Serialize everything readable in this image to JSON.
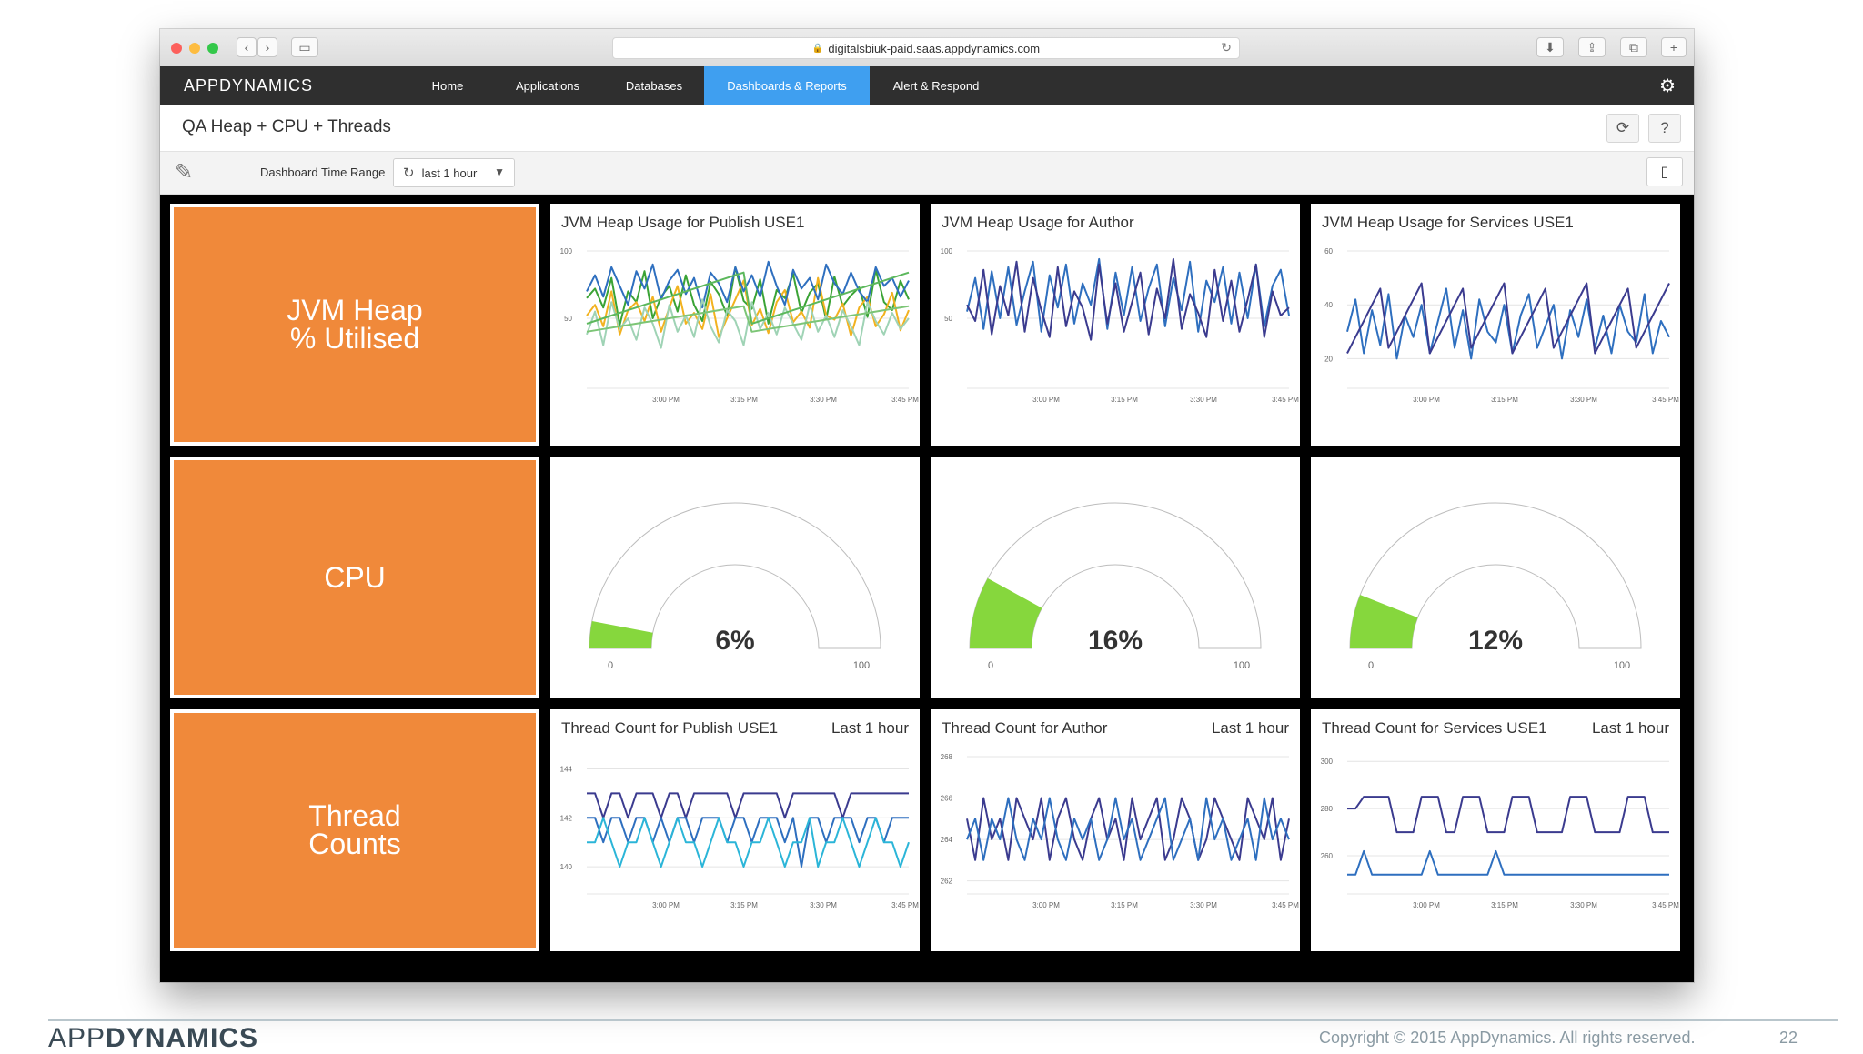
{
  "browser": {
    "url": "digitalsbiuk-paid.saas.appdynamics.com",
    "back_glyph": "‹",
    "forward_glyph": "›",
    "sidebar_glyph": "▭",
    "reload_glyph": "↻",
    "download_glyph": "⬇",
    "share_glyph": "⇪",
    "tabs_glyph": "⧉",
    "newtab_glyph": "+",
    "lock_glyph": "🔒"
  },
  "nav": {
    "logo": "APPDYNAMICS",
    "items": [
      "Home",
      "Applications",
      "Databases",
      "Dashboards & Reports",
      "Alert & Respond"
    ],
    "active_index": 3,
    "gear_glyph": "⚙",
    "active_color": "#3f9ff0"
  },
  "header": {
    "title": "QA Heap + CPU + Threads",
    "refresh_glyph": "⟳",
    "help_glyph": "?"
  },
  "toolbar": {
    "edit_glyph": "✎",
    "time_range_label": "Dashboard Time Range",
    "time_range_value": "last 1 hour",
    "cycle_glyph": "↻",
    "caret_glyph": "▼",
    "mobile_glyph": "▯"
  },
  "tiles": {
    "heap": "JVM Heap\n% Utilised",
    "cpu": "CPU",
    "threads": "Thread\nCounts",
    "color": "#f0893a"
  },
  "widgets": {
    "heap_publish": {
      "title": "JVM Heap Usage for Publish USE1",
      "subtitle": "",
      "chart_data": {
        "type": "line",
        "y_ticks": [
          "100",
          "50"
        ],
        "ylim": [
          0,
          100
        ],
        "x_ticks": [
          "3:00 PM",
          "3:15 PM",
          "3:30 PM",
          "3:45 PM"
        ],
        "series": [
          {
            "color": "#3aa335",
            "values": [
              65,
              72,
              58,
              80,
              45,
              70,
              62,
              85,
              50,
              66,
              74,
              55,
              82,
              60,
              48,
              77,
              68,
              52,
              88,
              63,
              57,
              79,
              46,
              71,
              65,
              83,
              54,
              69,
              76,
              49,
              81,
              59,
              67,
              73,
              51,
              86,
              62,
              56,
              78,
              64
            ]
          },
          {
            "color": "#f2b21f",
            "values": [
              52,
              60,
              44,
              70,
              38,
              56,
              62,
              48,
              66,
              40,
              58,
              74,
              46,
              54,
              42,
              68,
              36,
              50,
              64,
              78,
              45,
              57,
              39,
              62,
              71,
              47,
              55,
              43,
              80,
              52,
              49,
              61,
              37,
              58,
              66,
              44,
              53,
              69,
              41,
              56
            ]
          },
          {
            "color": "#2e6fbf",
            "values": [
              70,
              82,
              66,
              88,
              74,
              60,
              85,
              72,
              90,
              64,
              78,
              86,
              68,
              80,
              58,
              84,
              76,
              62,
              88,
              70,
              82,
              66,
              92,
              74,
              60,
              86,
              72,
              80,
              64,
              90,
              76,
              68,
              84,
              70,
              62,
              88,
              74,
              80,
              66,
              78
            ]
          },
          {
            "color": "#9fd3b5",
            "values": [
              38,
              55,
              30,
              62,
              42,
              50,
              34,
              58,
              46,
              28,
              60,
              40,
              52,
              36,
              64,
              44,
              32,
              56,
              48,
              30,
              62,
              42,
              54,
              38,
              58,
              46,
              34,
              60,
              40,
              52,
              36,
              56,
              44,
              30,
              62,
              48,
              38,
              54,
              42,
              50
            ]
          },
          {
            "color": "#5cb85c",
            "values": [
              46,
              48,
              50,
              52,
              54,
              56,
              58,
              60,
              62,
              64,
              66,
              68,
              70,
              72,
              74,
              76,
              78,
              80,
              82,
              84,
              46,
              48,
              50,
              52,
              54,
              56,
              58,
              60,
              62,
              64,
              66,
              68,
              70,
              72,
              74,
              76,
              78,
              80,
              82,
              84
            ]
          },
          {
            "color": "#7cc576",
            "values": [
              40,
              41,
              42,
              43,
              44,
              45,
              46,
              47,
              48,
              49,
              50,
              51,
              52,
              53,
              54,
              55,
              56,
              57,
              58,
              59,
              40,
              41,
              42,
              43,
              44,
              45,
              46,
              47,
              48,
              49,
              50,
              51,
              52,
              53,
              54,
              55,
              56,
              57,
              58,
              59
            ]
          }
        ]
      }
    },
    "heap_author": {
      "title": "JVM Heap Usage for Author",
      "subtitle": "",
      "chart_data": {
        "type": "line",
        "y_ticks": [
          "100",
          "50"
        ],
        "ylim": [
          0,
          100
        ],
        "x_ticks": [
          "3:00 PM",
          "3:15 PM",
          "3:30 PM",
          "3:45 PM"
        ],
        "series": [
          {
            "color": "#2e6fbf",
            "values": [
              55,
              80,
              42,
              85,
              50,
              88,
              45,
              70,
              92,
              40,
              82,
              58,
              90,
              46,
              76,
              60,
              94,
              42,
              84,
              52,
              88,
              48,
              72,
              90,
              44,
              80,
              56,
              92,
              40,
              78,
              62,
              88,
              46,
              84,
              50,
              90,
              44,
              74,
              86,
              52
            ]
          },
          {
            "color": "#3b3b8f",
            "values": [
              60,
              48,
              86,
              38,
              74,
              52,
              92,
              40,
              80,
              56,
              36,
              88,
              44,
              70,
              58,
              34,
              90,
              46,
              76,
              40,
              62,
              84,
              38,
              72,
              50,
              94,
              42,
              68,
              54,
              36,
              86,
              48,
              78,
              40,
              64,
              90,
              36,
              70,
              52,
              58
            ]
          }
        ]
      }
    },
    "heap_services": {
      "title": "JVM Heap Usage for Services USE1",
      "subtitle": "",
      "chart_data": {
        "type": "line",
        "y_ticks": [
          "60",
          "40",
          "20"
        ],
        "ylim": [
          10,
          60
        ],
        "x_ticks": [
          "3:00 PM",
          "3:15 PM",
          "3:30 PM",
          "3:45 PM"
        ],
        "series": [
          {
            "color": "#2e6fbf",
            "values": [
              30,
              42,
              22,
              38,
              25,
              44,
              20,
              36,
              28,
              40,
              22,
              34,
              46,
              24,
              38,
              20,
              42,
              30,
              26,
              40,
              22,
              36,
              44,
              24,
              32,
              40,
              20,
              38,
              28,
              42,
              24,
              36,
              22,
              40,
              30,
              26,
              44,
              22,
              34,
              28
            ]
          },
          {
            "color": "#3b3b8f",
            "values": [
              22,
              28,
              34,
              40,
              46,
              24,
              30,
              36,
              42,
              48,
              22,
              28,
              34,
              40,
              46,
              24,
              30,
              36,
              42,
              48,
              22,
              28,
              34,
              40,
              46,
              24,
              30,
              36,
              42,
              48,
              22,
              28,
              34,
              40,
              46,
              24,
              30,
              36,
              42,
              48
            ]
          }
        ]
      }
    },
    "cpu_publish": {
      "title": "",
      "chart_data": {
        "type": "gauge",
        "value": 6,
        "value_label": "6%",
        "min_label": "0",
        "max_label": "100",
        "color": "#86d73d"
      }
    },
    "cpu_author": {
      "title": "",
      "chart_data": {
        "type": "gauge",
        "value": 16,
        "value_label": "16%",
        "min_label": "0",
        "max_label": "100",
        "color": "#86d73d"
      }
    },
    "cpu_services": {
      "title": "",
      "chart_data": {
        "type": "gauge",
        "value": 12,
        "value_label": "12%",
        "min_label": "0",
        "max_label": "100",
        "color": "#86d73d"
      }
    },
    "threads_publish": {
      "title": "Thread Count for Publish USE1",
      "subtitle": "Last 1 hour",
      "chart_data": {
        "type": "line",
        "y_ticks": [
          "144",
          "142",
          "140"
        ],
        "ylim": [
          139,
          144.5
        ],
        "x_ticks": [
          "3:00 PM",
          "3:15 PM",
          "3:30 PM",
          "3:45 PM"
        ],
        "series": [
          {
            "color": "#3b3b8f",
            "values": [
              143,
              143,
              142,
              143,
              143,
              142,
              143,
              143,
              143,
              142,
              143,
              143,
              142,
              143,
              143,
              143,
              143,
              143,
              142,
              143,
              143,
              143,
              143,
              143,
              142,
              143,
              143,
              143,
              143,
              143,
              143,
              142,
              143,
              143,
              143,
              143,
              143,
              143,
              143,
              143
            ]
          },
          {
            "color": "#2e6fbf",
            "values": [
              142,
              142,
              141,
              142,
              142,
              141,
              142,
              142,
              141,
              142,
              141,
              142,
              142,
              141,
              142,
              142,
              142,
              141,
              142,
              142,
              141,
              142,
              142,
              142,
              141,
              142,
              140,
              142,
              142,
              141,
              142,
              142,
              142,
              141,
              142,
              142,
              141,
              142,
              142,
              142
            ]
          },
          {
            "color": "#2bb5d8",
            "values": [
              141,
              141,
              142,
              141,
              140,
              141,
              141,
              142,
              141,
              140,
              141,
              142,
              141,
              141,
              140,
              141,
              142,
              141,
              141,
              140,
              141,
              141,
              142,
              141,
              140,
              141,
              141,
              142,
              140,
              141,
              141,
              142,
              141,
              140,
              141,
              142,
              141,
              141,
              140,
              141
            ]
          }
        ]
      }
    },
    "threads_author": {
      "title": "Thread Count for Author",
      "subtitle": "Last 1 hour",
      "chart_data": {
        "type": "line",
        "y_ticks": [
          "268",
          "266",
          "264",
          "262"
        ],
        "ylim": [
          261.5,
          268
        ],
        "x_ticks": [
          "3:00 PM",
          "3:15 PM",
          "3:30 PM",
          "3:45 PM"
        ],
        "series": [
          {
            "color": "#3b3b8f",
            "values": [
              265,
              263,
              266,
              264,
              265,
              263,
              266,
              265,
              264,
              266,
              263,
              265,
              266,
              264,
              263,
              265,
              266,
              264,
              265,
              263,
              266,
              264,
              265,
              266,
              263,
              264,
              266,
              265,
              263,
              264,
              266,
              265,
              264,
              263,
              266,
              265,
              264,
              266,
              263,
              265
            ]
          },
          {
            "color": "#2e6fbf",
            "values": [
              264,
              265,
              263,
              265,
              264,
              266,
              264,
              263,
              265,
              264,
              266,
              264,
              263,
              265,
              264,
              265,
              263,
              264,
              266,
              264,
              265,
              263,
              264,
              265,
              266,
              263,
              264,
              265,
              263,
              266,
              264,
              265,
              263,
              264,
              265,
              263,
              266,
              264,
              265,
              264
            ]
          }
        ]
      }
    },
    "threads_services": {
      "title": "Thread Count for Services USE1",
      "subtitle": "Last 1 hour",
      "chart_data": {
        "type": "line",
        "y_ticks": [
          "300",
          "280",
          "260"
        ],
        "ylim": [
          245,
          302
        ],
        "x_ticks": [
          "3:00 PM",
          "3:15 PM",
          "3:30 PM",
          "3:45 PM"
        ],
        "series": [
          {
            "color": "#3b3b8f",
            "values": [
              280,
              280,
              285,
              285,
              285,
              285,
              270,
              270,
              270,
              285,
              285,
              285,
              270,
              270,
              285,
              285,
              285,
              270,
              270,
              270,
              285,
              285,
              285,
              270,
              270,
              270,
              270,
              285,
              285,
              285,
              270,
              270,
              270,
              270,
              285,
              285,
              285,
              270,
              270,
              270
            ]
          },
          {
            "color": "#2e6fbf",
            "values": [
              252,
              252,
              262,
              252,
              252,
              252,
              252,
              252,
              252,
              252,
              262,
              252,
              252,
              252,
              252,
              252,
              252,
              252,
              262,
              252,
              252,
              252,
              252,
              252,
              252,
              252,
              252,
              252,
              252,
              252,
              252,
              252,
              252,
              252,
              252,
              252,
              252,
              252,
              252,
              252
            ]
          }
        ]
      }
    }
  },
  "footer": {
    "logo_thin": "APP",
    "logo_bold": "DYNAMICS",
    "copyright": "Copyright © 2015 AppDynamics. All rights reserved.",
    "page": "22"
  }
}
